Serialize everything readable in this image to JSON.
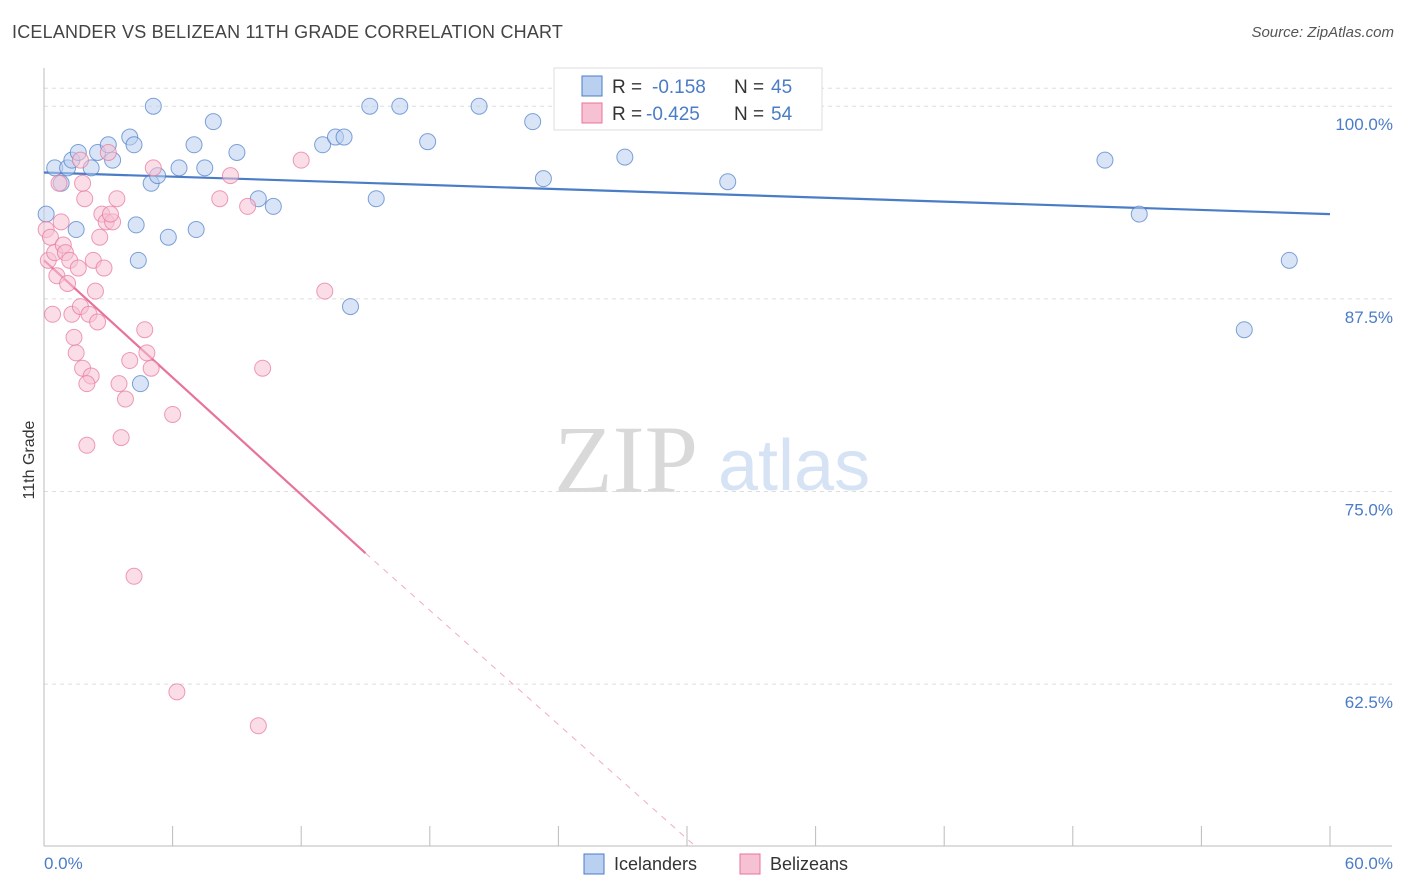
{
  "title": "ICELANDER VS BELIZEAN 11TH GRADE CORRELATION CHART",
  "source": "Source: ZipAtlas.com",
  "watermark": {
    "zip": "ZIP",
    "atlas": "atlas"
  },
  "colors": {
    "icelanders": "#4a7cc7",
    "icelanders_fill": "#b9d0f0",
    "belizeans": "#e8739a",
    "belizeans_fill": "#f6c1d3",
    "grid": "#dddddd",
    "tick_label": "#4a7cc7"
  },
  "legend": {
    "icelanders": {
      "r_label": "R =",
      "r_value": "-0.158",
      "n_label": "N =",
      "n_value": "45"
    },
    "belizeans": {
      "r_label": "R =",
      "r_value": "-0.425",
      "n_label": "N =",
      "n_value": "54"
    }
  },
  "chart_data": {
    "type": "scatter",
    "title": "ICELANDER VS BELIZEAN 11TH GRADE CORRELATION CHART",
    "xlabel": "",
    "ylabel": "11th Grade",
    "xlim": [
      0,
      60
    ],
    "ylim": [
      52,
      103
    ],
    "x_tick_labels": [
      "0.0%",
      "60.0%"
    ],
    "y_ticks": [
      62.5,
      75.0,
      87.5,
      100.0
    ],
    "y_tick_labels": [
      "62.5%",
      "75.0%",
      "87.5%",
      "100.0%"
    ],
    "grid": "horizontal dashed",
    "legend_placement": "top-center",
    "series": [
      {
        "name": "Icelanders",
        "color": "#4a7cc7",
        "points": [
          [
            0.1,
            93.0
          ],
          [
            0.5,
            96.0
          ],
          [
            0.8,
            95.0
          ],
          [
            1.1,
            96.0
          ],
          [
            1.3,
            96.5
          ],
          [
            1.6,
            97.0
          ],
          [
            1.5,
            92.0
          ],
          [
            2.2,
            96.0
          ],
          [
            2.5,
            97.0
          ],
          [
            3.0,
            97.5
          ],
          [
            3.2,
            96.5
          ],
          [
            4.0,
            98.0
          ],
          [
            4.2,
            97.5
          ],
          [
            4.4,
            90.0
          ],
          [
            4.3,
            92.3
          ],
          [
            4.5,
            82.0
          ],
          [
            5.0,
            95.0
          ],
          [
            5.1,
            100.0
          ],
          [
            5.3,
            95.5
          ],
          [
            5.8,
            91.5
          ],
          [
            6.3,
            96.0
          ],
          [
            7.0,
            97.5
          ],
          [
            7.1,
            92.0
          ],
          [
            7.5,
            96.0
          ],
          [
            7.9,
            99.0
          ],
          [
            9.0,
            97.0
          ],
          [
            10.0,
            94.0
          ],
          [
            10.7,
            93.5
          ],
          [
            13.0,
            97.5
          ],
          [
            13.6,
            98.0
          ],
          [
            14.0,
            98.0
          ],
          [
            14.3,
            87.0
          ],
          [
            15.2,
            100.0
          ],
          [
            15.5,
            94.0
          ],
          [
            16.6,
            100.0
          ],
          [
            17.9,
            97.7
          ],
          [
            20.3,
            100.0
          ],
          [
            22.8,
            99.0
          ],
          [
            23.3,
            95.3
          ],
          [
            27.1,
            96.7
          ],
          [
            31.9,
            95.1
          ],
          [
            49.5,
            96.5
          ],
          [
            51.1,
            93.0
          ],
          [
            56.0,
            85.5
          ],
          [
            58.1,
            90.0
          ]
        ],
        "trend": {
          "x": [
            0,
            60
          ],
          "y": [
            95.7,
            93.0
          ]
        }
      },
      {
        "name": "Belizeans",
        "color": "#e8739a",
        "points": [
          [
            0.1,
            92.0
          ],
          [
            0.2,
            90.0
          ],
          [
            0.3,
            91.5
          ],
          [
            0.4,
            86.5
          ],
          [
            0.5,
            90.5
          ],
          [
            0.6,
            89.0
          ],
          [
            0.7,
            95.0
          ],
          [
            0.8,
            92.5
          ],
          [
            0.9,
            91.0
          ],
          [
            1.0,
            90.5
          ],
          [
            1.1,
            88.5
          ],
          [
            1.2,
            90.0
          ],
          [
            1.3,
            86.5
          ],
          [
            1.4,
            85.0
          ],
          [
            1.5,
            84.0
          ],
          [
            1.6,
            89.5
          ],
          [
            1.7,
            87.0
          ],
          [
            1.8,
            83.0
          ],
          [
            1.9,
            94.0
          ],
          [
            2.0,
            78.0
          ],
          [
            2.1,
            86.5
          ],
          [
            2.2,
            82.5
          ],
          [
            2.3,
            90.0
          ],
          [
            2.4,
            88.0
          ],
          [
            2.5,
            86.0
          ],
          [
            2.6,
            91.5
          ],
          [
            2.7,
            93.0
          ],
          [
            2.8,
            89.5
          ],
          [
            2.9,
            92.5
          ],
          [
            3.0,
            97.0
          ],
          [
            3.2,
            92.5
          ],
          [
            3.4,
            94.0
          ],
          [
            3.5,
            82.0
          ],
          [
            3.6,
            78.5
          ],
          [
            3.8,
            81.0
          ],
          [
            4.0,
            83.5
          ],
          [
            4.2,
            69.5
          ],
          [
            4.7,
            85.5
          ],
          [
            4.8,
            84.0
          ],
          [
            5.0,
            83.0
          ],
          [
            5.1,
            96.0
          ],
          [
            6.0,
            80.0
          ],
          [
            6.2,
            62.0
          ],
          [
            8.2,
            94.0
          ],
          [
            8.7,
            95.5
          ],
          [
            9.5,
            93.5
          ],
          [
            10.0,
            59.8
          ],
          [
            10.2,
            83.0
          ],
          [
            12.0,
            96.5
          ],
          [
            13.1,
            88.0
          ],
          [
            1.8,
            95.0
          ],
          [
            1.7,
            96.5
          ],
          [
            3.1,
            93.0
          ],
          [
            2.0,
            82.0
          ]
        ],
        "trend": {
          "x": [
            0,
            15
          ],
          "y": [
            90.0,
            71.0
          ]
        },
        "trend_extension": {
          "x": [
            15,
            32
          ],
          "y": [
            71.0,
            50.0
          ]
        }
      }
    ]
  }
}
